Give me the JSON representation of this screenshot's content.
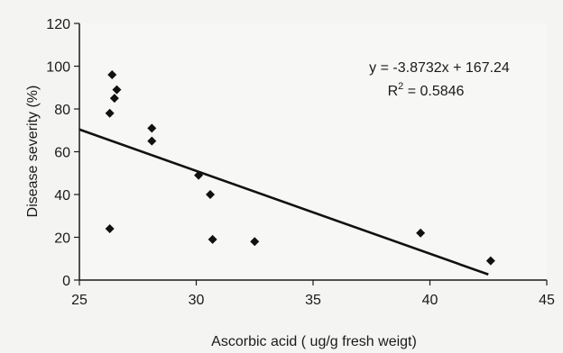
{
  "chart_data": {
    "type": "scatter",
    "title": "",
    "xlabel": "Ascorbic acid ( ug/g fresh weigt)",
    "ylabel": "Disease severity (%)",
    "xlim": [
      25,
      45
    ],
    "ylim": [
      0,
      120
    ],
    "xticks": [
      25,
      30,
      35,
      40,
      45
    ],
    "yticks": [
      0,
      20,
      40,
      60,
      80,
      100,
      120
    ],
    "grid": false,
    "legend": "none",
    "marker": "diamond",
    "marker_color": "#111111",
    "line_color": "#111111",
    "points": [
      {
        "x": 26.3,
        "y": 24
      },
      {
        "x": 26.3,
        "y": 78
      },
      {
        "x": 26.4,
        "y": 96
      },
      {
        "x": 26.5,
        "y": 85
      },
      {
        "x": 26.6,
        "y": 89
      },
      {
        "x": 28.1,
        "y": 71
      },
      {
        "x": 28.1,
        "y": 65
      },
      {
        "x": 30.1,
        "y": 49
      },
      {
        "x": 30.6,
        "y": 40
      },
      {
        "x": 30.7,
        "y": 19
      },
      {
        "x": 32.5,
        "y": 18
      },
      {
        "x": 39.6,
        "y": 22
      },
      {
        "x": 42.6,
        "y": 9
      }
    ],
    "trendline": {
      "slope": -3.8732,
      "intercept": 167.24,
      "x_range": [
        25,
        42.5
      ],
      "equation": "y = -3.8732x + 167.24",
      "r2_label": "R",
      "r2_sup": "2",
      "r2_value": " = 0.5846"
    }
  }
}
